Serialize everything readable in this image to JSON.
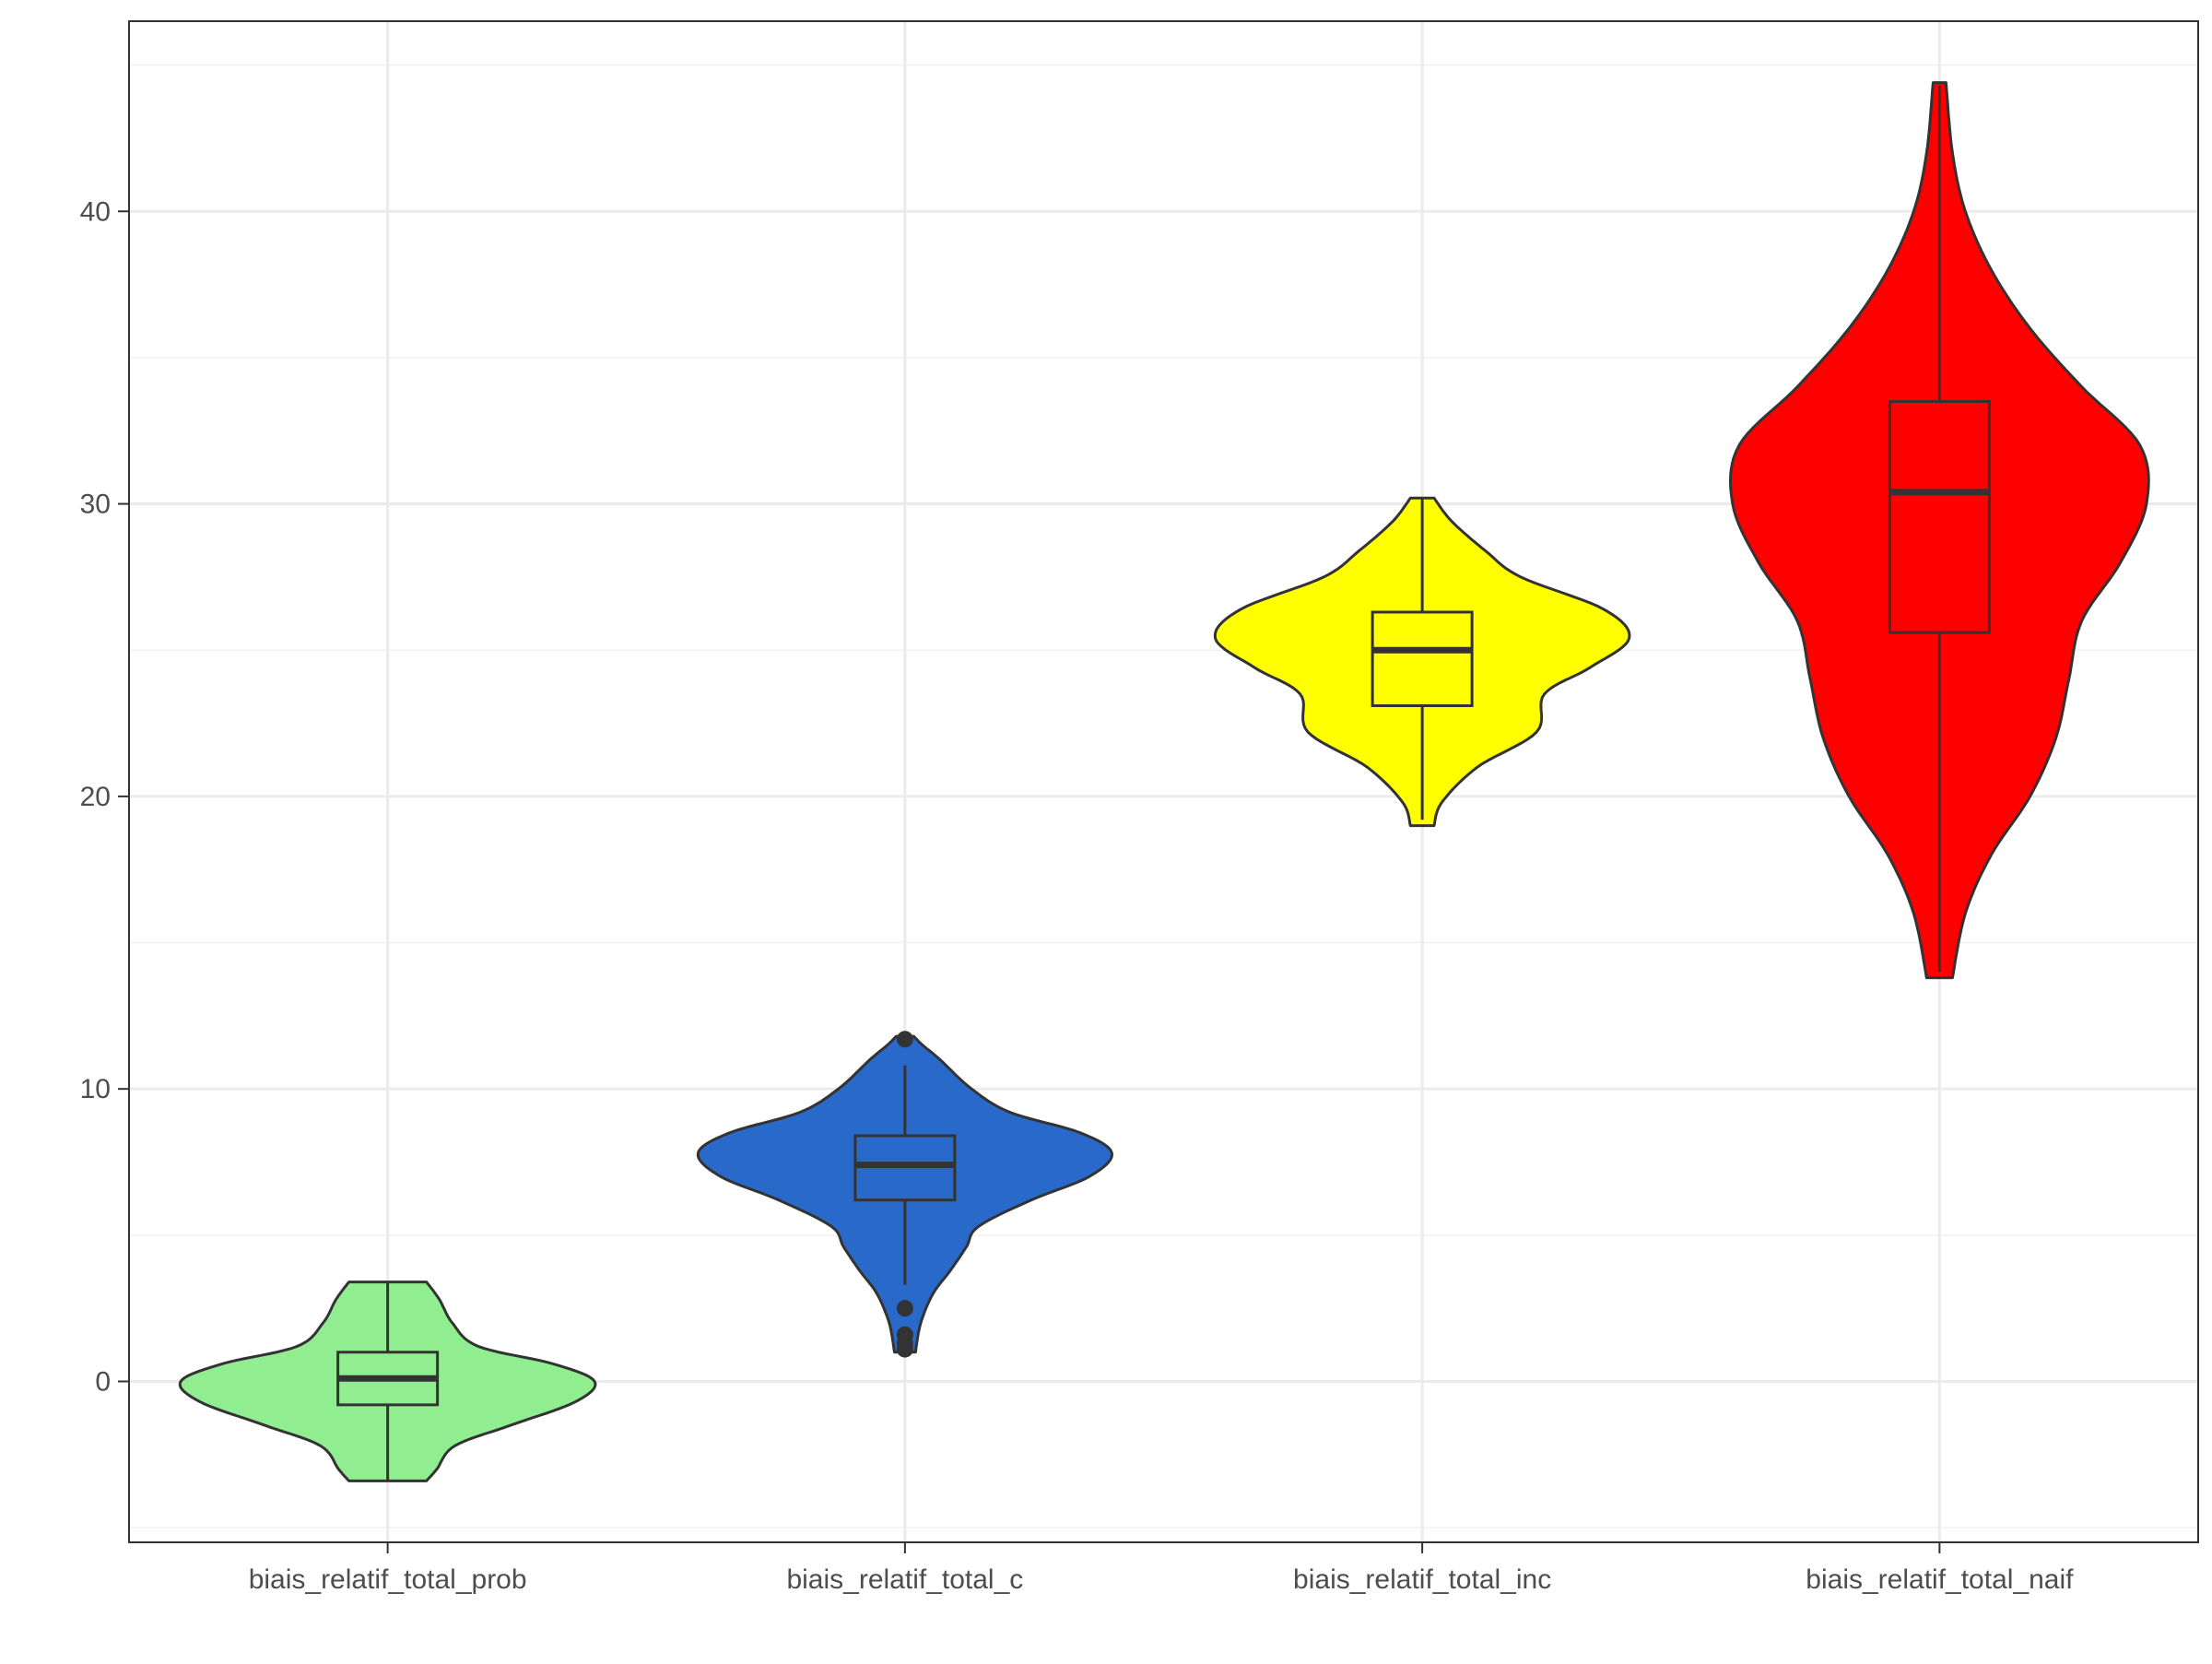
{
  "chart_data": {
    "type": "violin",
    "title": "",
    "xlabel": "",
    "ylabel": "",
    "ylim": [
      -5.5,
      46.5
    ],
    "y_ticks": [
      0,
      10,
      20,
      30,
      40
    ],
    "y_tick_labels": [
      "0",
      "10",
      "20",
      "30",
      "40"
    ],
    "grid": true,
    "legend": "none",
    "categories": [
      "biais_relatif_total_prob",
      "biais_relatif_total_c",
      "biais_relatif_total_inc",
      "biais_relatif_total_naif"
    ],
    "series": [
      {
        "category": "biais_relatif_total_prob",
        "color": "#90EE90",
        "min": -3.4,
        "q1": -0.8,
        "median": 0.1,
        "q3": 1.0,
        "max": 3.4,
        "outliers": [],
        "density": [
          [
            -3.4,
            0.3
          ],
          [
            -3.0,
            0.38
          ],
          [
            -2.2,
            0.52
          ],
          [
            -1.5,
            0.95
          ],
          [
            -0.7,
            1.45
          ],
          [
            0.0,
            1.6
          ],
          [
            0.6,
            1.28
          ],
          [
            1.2,
            0.7
          ],
          [
            2.0,
            0.5
          ],
          [
            2.8,
            0.4
          ],
          [
            3.4,
            0.3
          ]
        ]
      },
      {
        "category": "biais_relatif_total_c",
        "color": "#2969C9",
        "min": 3.3,
        "q1": 6.2,
        "median": 7.4,
        "q3": 8.4,
        "max": 10.8,
        "outliers": [
          11.7,
          2.5,
          1.6,
          1.3,
          1.1
        ],
        "density": [
          [
            1.0,
            0.06
          ],
          [
            2.0,
            0.09
          ],
          [
            3.0,
            0.16
          ],
          [
            3.8,
            0.26
          ],
          [
            4.6,
            0.35
          ],
          [
            5.3,
            0.42
          ],
          [
            6.2,
            0.72
          ],
          [
            7.0,
            1.05
          ],
          [
            7.8,
            1.18
          ],
          [
            8.5,
            1.0
          ],
          [
            9.2,
            0.6
          ],
          [
            10.0,
            0.38
          ],
          [
            11.0,
            0.2
          ],
          [
            11.5,
            0.1
          ],
          [
            11.8,
            0.05
          ]
        ]
      },
      {
        "category": "biais_relatif_total_inc",
        "color": "#FFFF00",
        "min": 19.2,
        "q1": 23.1,
        "median": 25.0,
        "q3": 26.3,
        "max": 30.2,
        "outliers": [],
        "density": [
          [
            19.0,
            0.06
          ],
          [
            19.8,
            0.1
          ],
          [
            21.0,
            0.28
          ],
          [
            22.2,
            0.58
          ],
          [
            23.5,
            0.62
          ],
          [
            24.4,
            0.85
          ],
          [
            25.4,
            1.05
          ],
          [
            26.4,
            0.92
          ],
          [
            27.5,
            0.5
          ],
          [
            28.4,
            0.32
          ],
          [
            29.4,
            0.15
          ],
          [
            30.2,
            0.06
          ]
        ]
      },
      {
        "category": "biais_relatif_total_naif",
        "color": "#FF0000",
        "min": 14.0,
        "q1": 25.6,
        "median": 30.4,
        "q3": 33.5,
        "max": 44.3,
        "outliers": [],
        "density": [
          [
            13.8,
            0.02
          ],
          [
            16.0,
            0.04
          ],
          [
            18.0,
            0.08
          ],
          [
            20.0,
            0.14
          ],
          [
            22.0,
            0.18
          ],
          [
            24.0,
            0.2
          ],
          [
            26.0,
            0.22
          ],
          [
            28.0,
            0.28
          ],
          [
            30.0,
            0.32
          ],
          [
            32.0,
            0.31
          ],
          [
            34.0,
            0.22
          ],
          [
            36.0,
            0.14
          ],
          [
            38.0,
            0.08
          ],
          [
            40.0,
            0.04
          ],
          [
            42.0,
            0.02
          ],
          [
            44.4,
            0.01
          ]
        ]
      }
    ]
  }
}
